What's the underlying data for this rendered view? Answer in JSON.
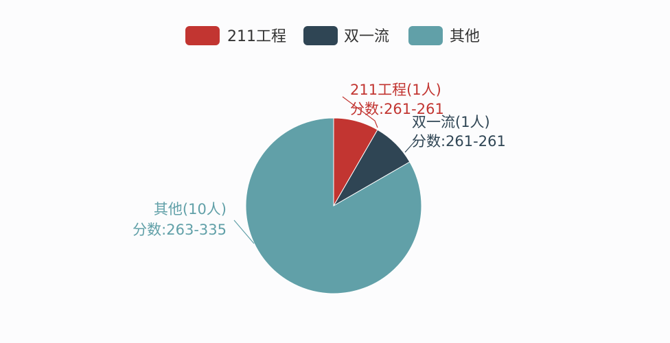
{
  "chart_data": {
    "type": "pie",
    "legend_position": "top-center",
    "series": [
      {
        "name": "211工程",
        "value": 1,
        "label_line1": "211工程(1人)",
        "label_line2": "分数:261-261",
        "color": "#c23531"
      },
      {
        "name": "双一流",
        "value": 1,
        "label_line1": "双一流(1人)",
        "label_line2": "分数:261-261",
        "color": "#2f4554"
      },
      {
        "name": "其他",
        "value": 10,
        "label_line1": "其他(10人)",
        "label_line2": "分数:263-335",
        "color": "#61a0a8"
      }
    ]
  }
}
